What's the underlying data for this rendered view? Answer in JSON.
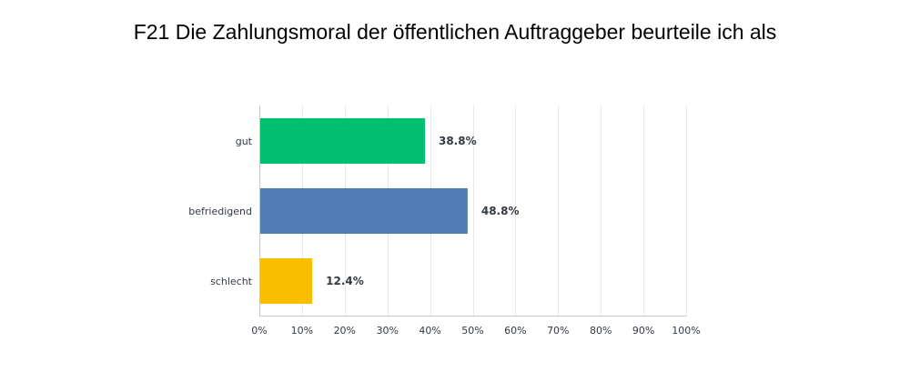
{
  "chart_data": {
    "type": "bar",
    "orientation": "horizontal",
    "title": "F21 Die Zahlungsmoral der öffentlichen Auftraggeber beurteile ich als",
    "categories": [
      "gut",
      "befriedigend",
      "schlecht"
    ],
    "values": [
      38.8,
      48.8,
      12.4
    ],
    "value_labels": [
      "38.8%",
      "48.8%",
      "12.4%"
    ],
    "colors": [
      "#00bf6f",
      "#507cb6",
      "#f9be00"
    ],
    "xlim": [
      0,
      100
    ],
    "x_ticks": [
      0,
      10,
      20,
      30,
      40,
      50,
      60,
      70,
      80,
      90,
      100
    ],
    "x_tick_labels": [
      "0%",
      "10%",
      "20%",
      "30%",
      "40%",
      "50%",
      "60%",
      "70%",
      "80%",
      "90%",
      "100%"
    ],
    "grid": true,
    "legend": "none"
  }
}
